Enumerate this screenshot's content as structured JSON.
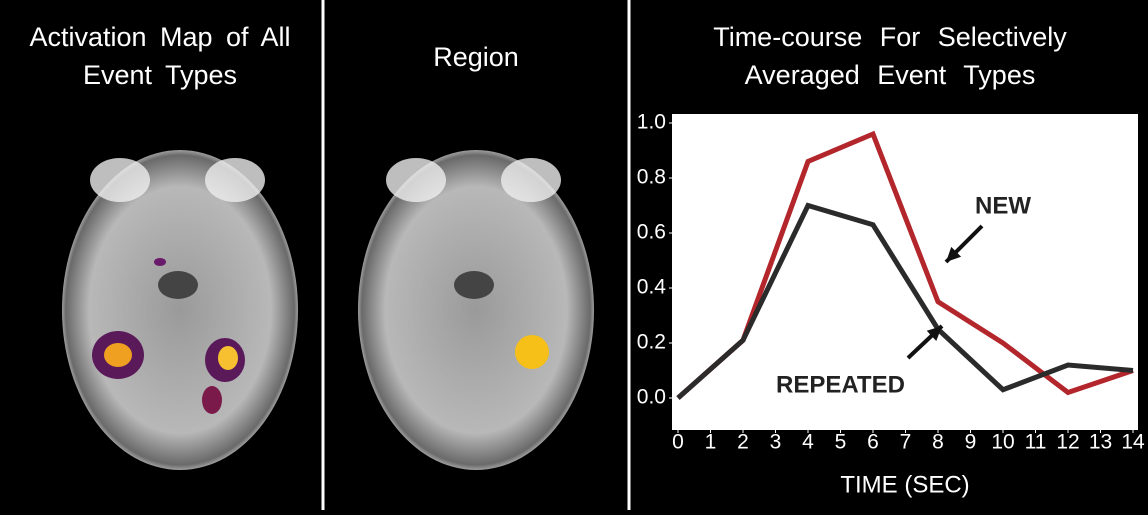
{
  "panels": [
    {
      "title": "Activation Map of All Event Types"
    },
    {
      "title": "Region"
    }
  ],
  "chart_data": {
    "type": "line",
    "title": "Time-course For Selectively Averaged Event Types",
    "xlabel": "TIME (SEC)",
    "x": [
      0,
      2,
      4,
      6,
      8,
      10,
      12,
      14
    ],
    "series": [
      {
        "name": "NEW",
        "color": "#b3262b",
        "values": [
          0.0,
          0.21,
          0.86,
          0.96,
          0.35,
          0.2,
          0.02,
          0.1
        ]
      },
      {
        "name": "REPEATED",
        "color": "#2b2b2b",
        "values": [
          0.0,
          0.21,
          0.7,
          0.63,
          0.25,
          0.03,
          0.12,
          0.1
        ]
      }
    ],
    "xlim": [
      0,
      14
    ],
    "xticks": [
      0,
      1,
      2,
      3,
      4,
      5,
      6,
      7,
      8,
      9,
      10,
      11,
      12,
      13,
      14
    ],
    "ylim": [
      0,
      1
    ],
    "yticks": [
      {
        "value": 0,
        "label": "0.0"
      },
      0.2,
      0.4,
      0.6,
      0.8,
      {
        "value": 1,
        "label": "1.0"
      }
    ],
    "grid": false
  }
}
